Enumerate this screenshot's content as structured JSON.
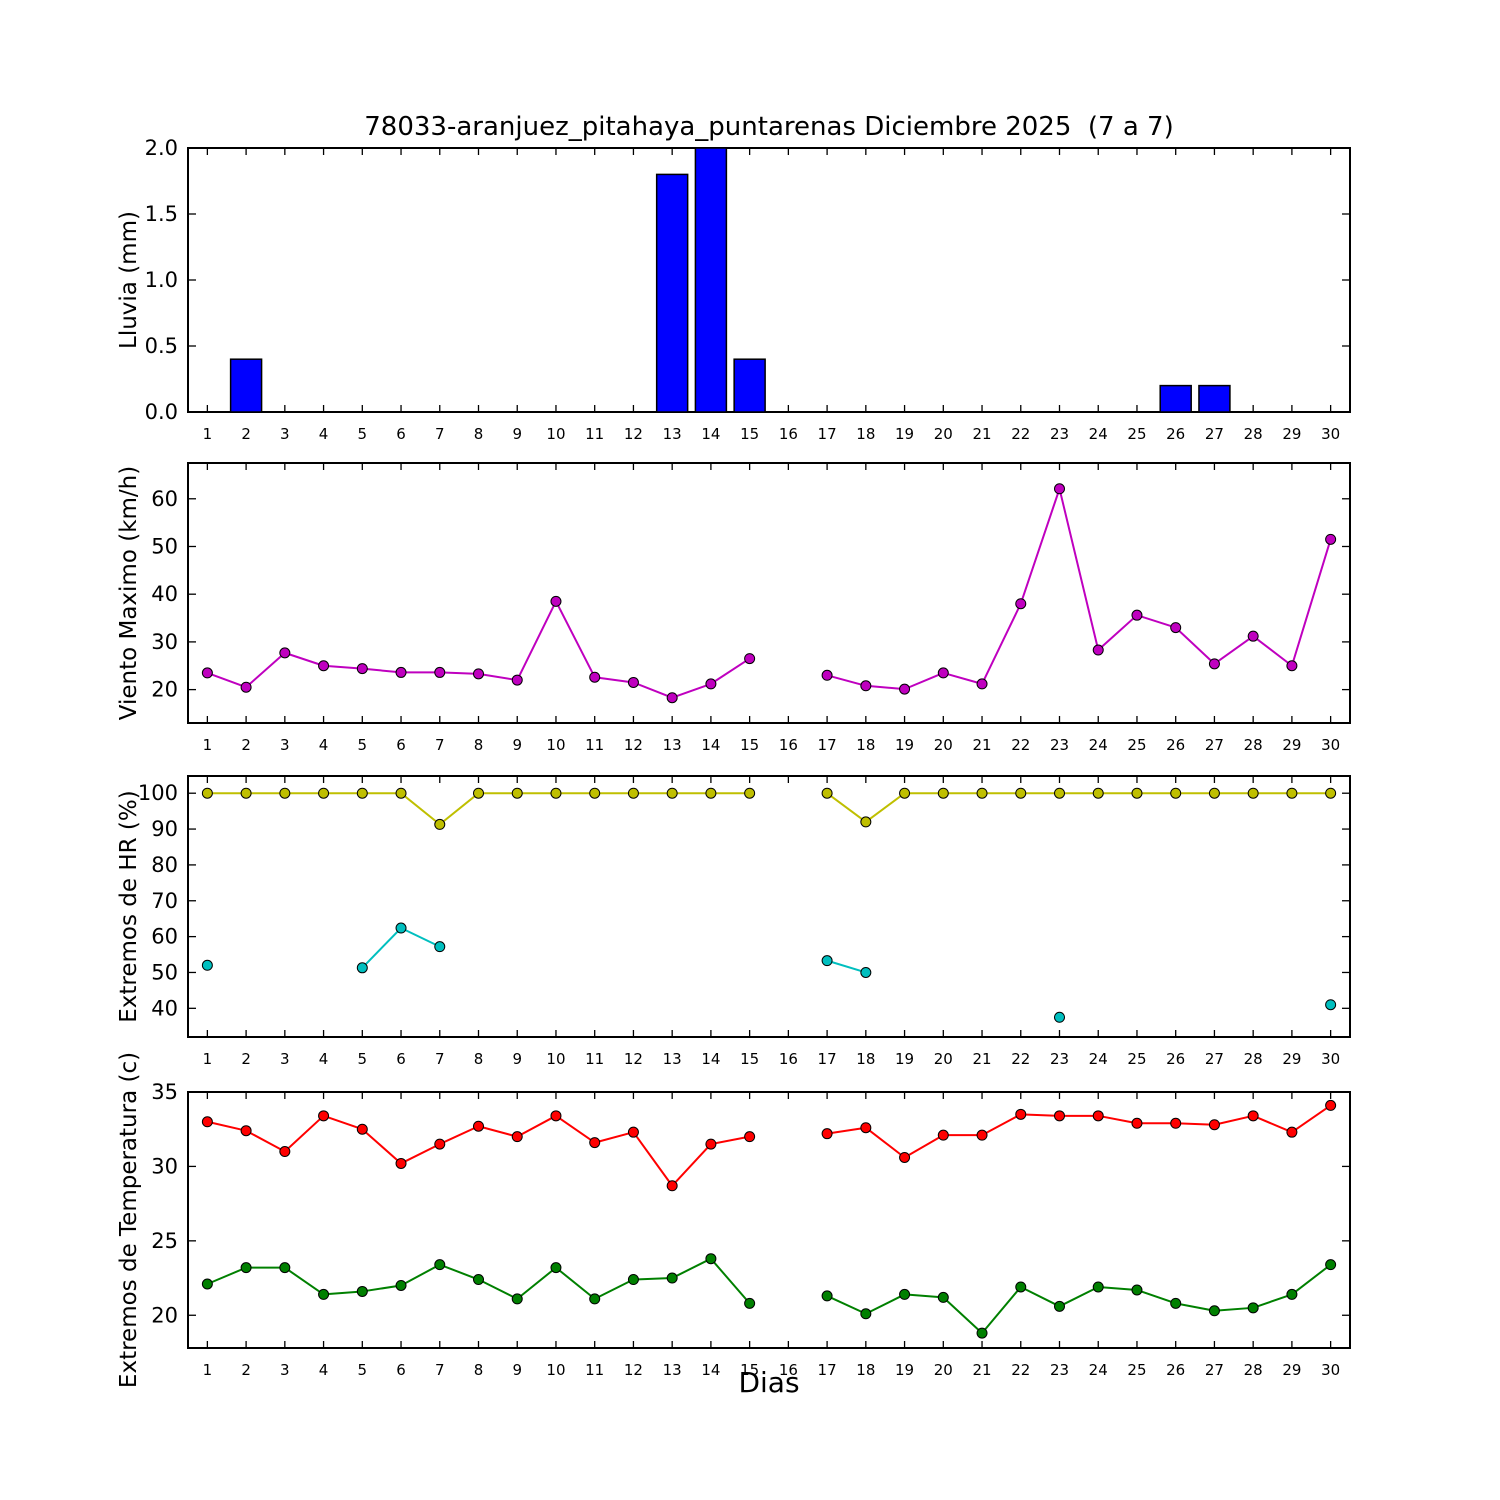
{
  "figure": {
    "title": "78033-aranjuez_pitahaya_puntarenas Diciembre 2025  (7 a 7)",
    "xlabel": "Dias",
    "background": "#ffffff",
    "axis_color": "#000000",
    "x_ticks": [
      1,
      2,
      3,
      4,
      5,
      6,
      7,
      8,
      9,
      10,
      11,
      12,
      13,
      14,
      15,
      16,
      17,
      18,
      19,
      20,
      21,
      22,
      23,
      24,
      25,
      26,
      27,
      28,
      29,
      30
    ],
    "xlim": [
      0.5,
      30.5
    ]
  },
  "chart_data": [
    {
      "type": "bar",
      "ylabel": "Lluvia (mm)",
      "color": "#0000ff",
      "ylim": [
        0,
        2.0
      ],
      "yticks": [
        0.0,
        0.5,
        1.0,
        1.5,
        2.0
      ],
      "ytick_labels": [
        "0.0",
        "0.5",
        "1.0",
        "1.5",
        "2.0"
      ],
      "grid": false,
      "legend": "none",
      "categories": [
        1,
        2,
        3,
        4,
        5,
        6,
        7,
        8,
        9,
        10,
        11,
        12,
        13,
        14,
        15,
        16,
        17,
        18,
        19,
        20,
        21,
        22,
        23,
        24,
        25,
        26,
        27,
        28,
        29,
        30
      ],
      "values": [
        0,
        0.4,
        0,
        0,
        0,
        0,
        0,
        0,
        0,
        0,
        0,
        0,
        1.8,
        2.0,
        0.4,
        0,
        0,
        0,
        0,
        0,
        0,
        0,
        0,
        0,
        0,
        0.2,
        0.2,
        0,
        0,
        0
      ]
    },
    {
      "type": "line",
      "ylabel": "Viento Maximo (km/h)",
      "ylim": [
        13,
        67.5
      ],
      "yticks": [
        20,
        30,
        40,
        50,
        60
      ],
      "ytick_labels": [
        "20",
        "30",
        "40",
        "50",
        "60"
      ],
      "grid": false,
      "legend": "none",
      "categories": [
        1,
        2,
        3,
        4,
        5,
        6,
        7,
        8,
        9,
        10,
        11,
        12,
        13,
        14,
        15,
        16,
        17,
        18,
        19,
        20,
        21,
        22,
        23,
        24,
        25,
        26,
        27,
        28,
        29,
        30
      ],
      "series": [
        {
          "name": "viento-maximo",
          "color": "#bf00bf",
          "values": [
            23.5,
            20.5,
            27.7,
            25.0,
            24.4,
            23.6,
            23.6,
            23.3,
            22.0,
            38.5,
            22.6,
            21.5,
            18.3,
            21.2,
            26.5,
            null,
            23.0,
            20.8,
            20.1,
            23.5,
            21.2,
            38.0,
            62.1,
            28.3,
            35.6,
            33.0,
            25.4,
            31.2,
            25.0,
            51.5
          ]
        }
      ]
    },
    {
      "type": "line",
      "ylabel": "Extremos de HR (%)",
      "ylim": [
        32,
        104.8
      ],
      "yticks": [
        40,
        50,
        60,
        70,
        80,
        90,
        100
      ],
      "ytick_labels": [
        "40",
        "50",
        "60",
        "70",
        "80",
        "90",
        "100"
      ],
      "grid": false,
      "legend": "none",
      "categories": [
        1,
        2,
        3,
        4,
        5,
        6,
        7,
        8,
        9,
        10,
        11,
        12,
        13,
        14,
        15,
        16,
        17,
        18,
        19,
        20,
        21,
        22,
        23,
        24,
        25,
        26,
        27,
        28,
        29,
        30
      ],
      "series": [
        {
          "name": "hr-maxima",
          "color": "#bfbf00",
          "values": [
            100,
            100,
            100,
            100,
            100,
            100,
            91.3,
            100,
            100,
            100,
            100,
            100,
            100,
            100,
            100,
            null,
            100,
            92,
            100,
            100,
            100,
            100,
            100,
            100,
            100,
            100,
            100,
            100,
            100,
            100
          ]
        },
        {
          "name": "hr-minima",
          "color": "#00bfbf",
          "values": [
            52,
            null,
            null,
            null,
            51.3,
            62.4,
            57.2,
            null,
            null,
            null,
            null,
            null,
            null,
            null,
            null,
            null,
            53.3,
            50,
            null,
            null,
            null,
            null,
            37.5,
            null,
            null,
            null,
            null,
            null,
            null,
            41
          ]
        }
      ]
    },
    {
      "type": "line",
      "ylabel": "Extremos de Temperatura (c)",
      "ylim": [
        17.8,
        35
      ],
      "yticks": [
        20,
        25,
        30,
        35
      ],
      "ytick_labels": [
        "20",
        "25",
        "30",
        "35"
      ],
      "grid": false,
      "legend": "none",
      "categories": [
        1,
        2,
        3,
        4,
        5,
        6,
        7,
        8,
        9,
        10,
        11,
        12,
        13,
        14,
        15,
        16,
        17,
        18,
        19,
        20,
        21,
        22,
        23,
        24,
        25,
        26,
        27,
        28,
        29,
        30
      ],
      "series": [
        {
          "name": "temperatura-maxima",
          "color": "#ff0000",
          "values": [
            33.0,
            32.4,
            31.0,
            33.4,
            32.5,
            30.2,
            31.5,
            32.7,
            32.0,
            33.4,
            31.6,
            32.3,
            28.7,
            31.5,
            32.0,
            null,
            32.2,
            32.6,
            30.6,
            32.1,
            32.1,
            33.5,
            33.4,
            33.4,
            32.9,
            32.9,
            32.8,
            33.4,
            32.3,
            34.1
          ]
        },
        {
          "name": "temperatura-minima",
          "color": "#008000",
          "values": [
            22.1,
            23.2,
            23.2,
            21.4,
            21.6,
            22.0,
            23.4,
            22.4,
            21.1,
            23.2,
            21.1,
            22.4,
            22.5,
            23.8,
            20.8,
            null,
            21.3,
            20.1,
            21.4,
            21.2,
            18.8,
            21.9,
            20.6,
            21.9,
            21.7,
            20.8,
            20.3,
            20.5,
            21.4,
            23.4
          ]
        }
      ]
    }
  ]
}
